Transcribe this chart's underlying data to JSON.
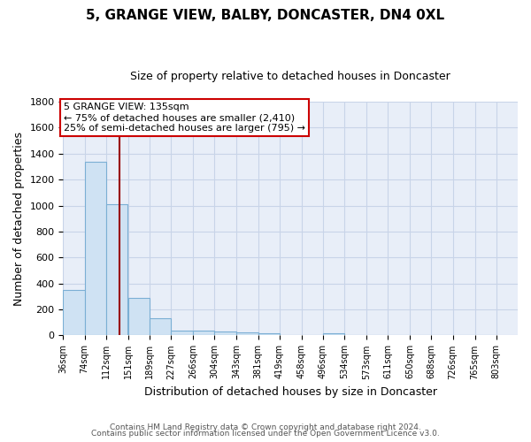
{
  "title1": "5, GRANGE VIEW, BALBY, DONCASTER, DN4 0XL",
  "title2": "Size of property relative to detached houses in Doncaster",
  "xlabel": "Distribution of detached houses by size in Doncaster",
  "ylabel": "Number of detached properties",
  "bins": [
    36,
    74,
    112,
    151,
    189,
    227,
    266,
    304,
    343,
    381,
    419,
    458,
    496,
    534,
    573,
    611,
    650,
    688,
    726,
    765,
    803
  ],
  "values": [
    350,
    1340,
    1010,
    290,
    130,
    40,
    40,
    30,
    25,
    20,
    0,
    0,
    20,
    0,
    0,
    0,
    0,
    0,
    0,
    0
  ],
  "bar_color": "#cfe2f3",
  "bar_edge_color": "#7bafd4",
  "grid_color": "#c8d4e8",
  "bg_color": "#e8eef8",
  "property_size": 135,
  "red_line_color": "#990000",
  "annotation_line1": "5 GRANGE VIEW: 135sqm",
  "annotation_line2": "← 75% of detached houses are smaller (2,410)",
  "annotation_line3": "25% of semi-detached houses are larger (795) →",
  "annotation_box_color": "white",
  "annotation_box_edge": "#cc0000",
  "ylim": [
    0,
    1800
  ],
  "yticks": [
    0,
    200,
    400,
    600,
    800,
    1000,
    1200,
    1400,
    1600,
    1800
  ],
  "footer1": "Contains HM Land Registry data © Crown copyright and database right 2024.",
  "footer2": "Contains public sector information licensed under the Open Government Licence v3.0."
}
